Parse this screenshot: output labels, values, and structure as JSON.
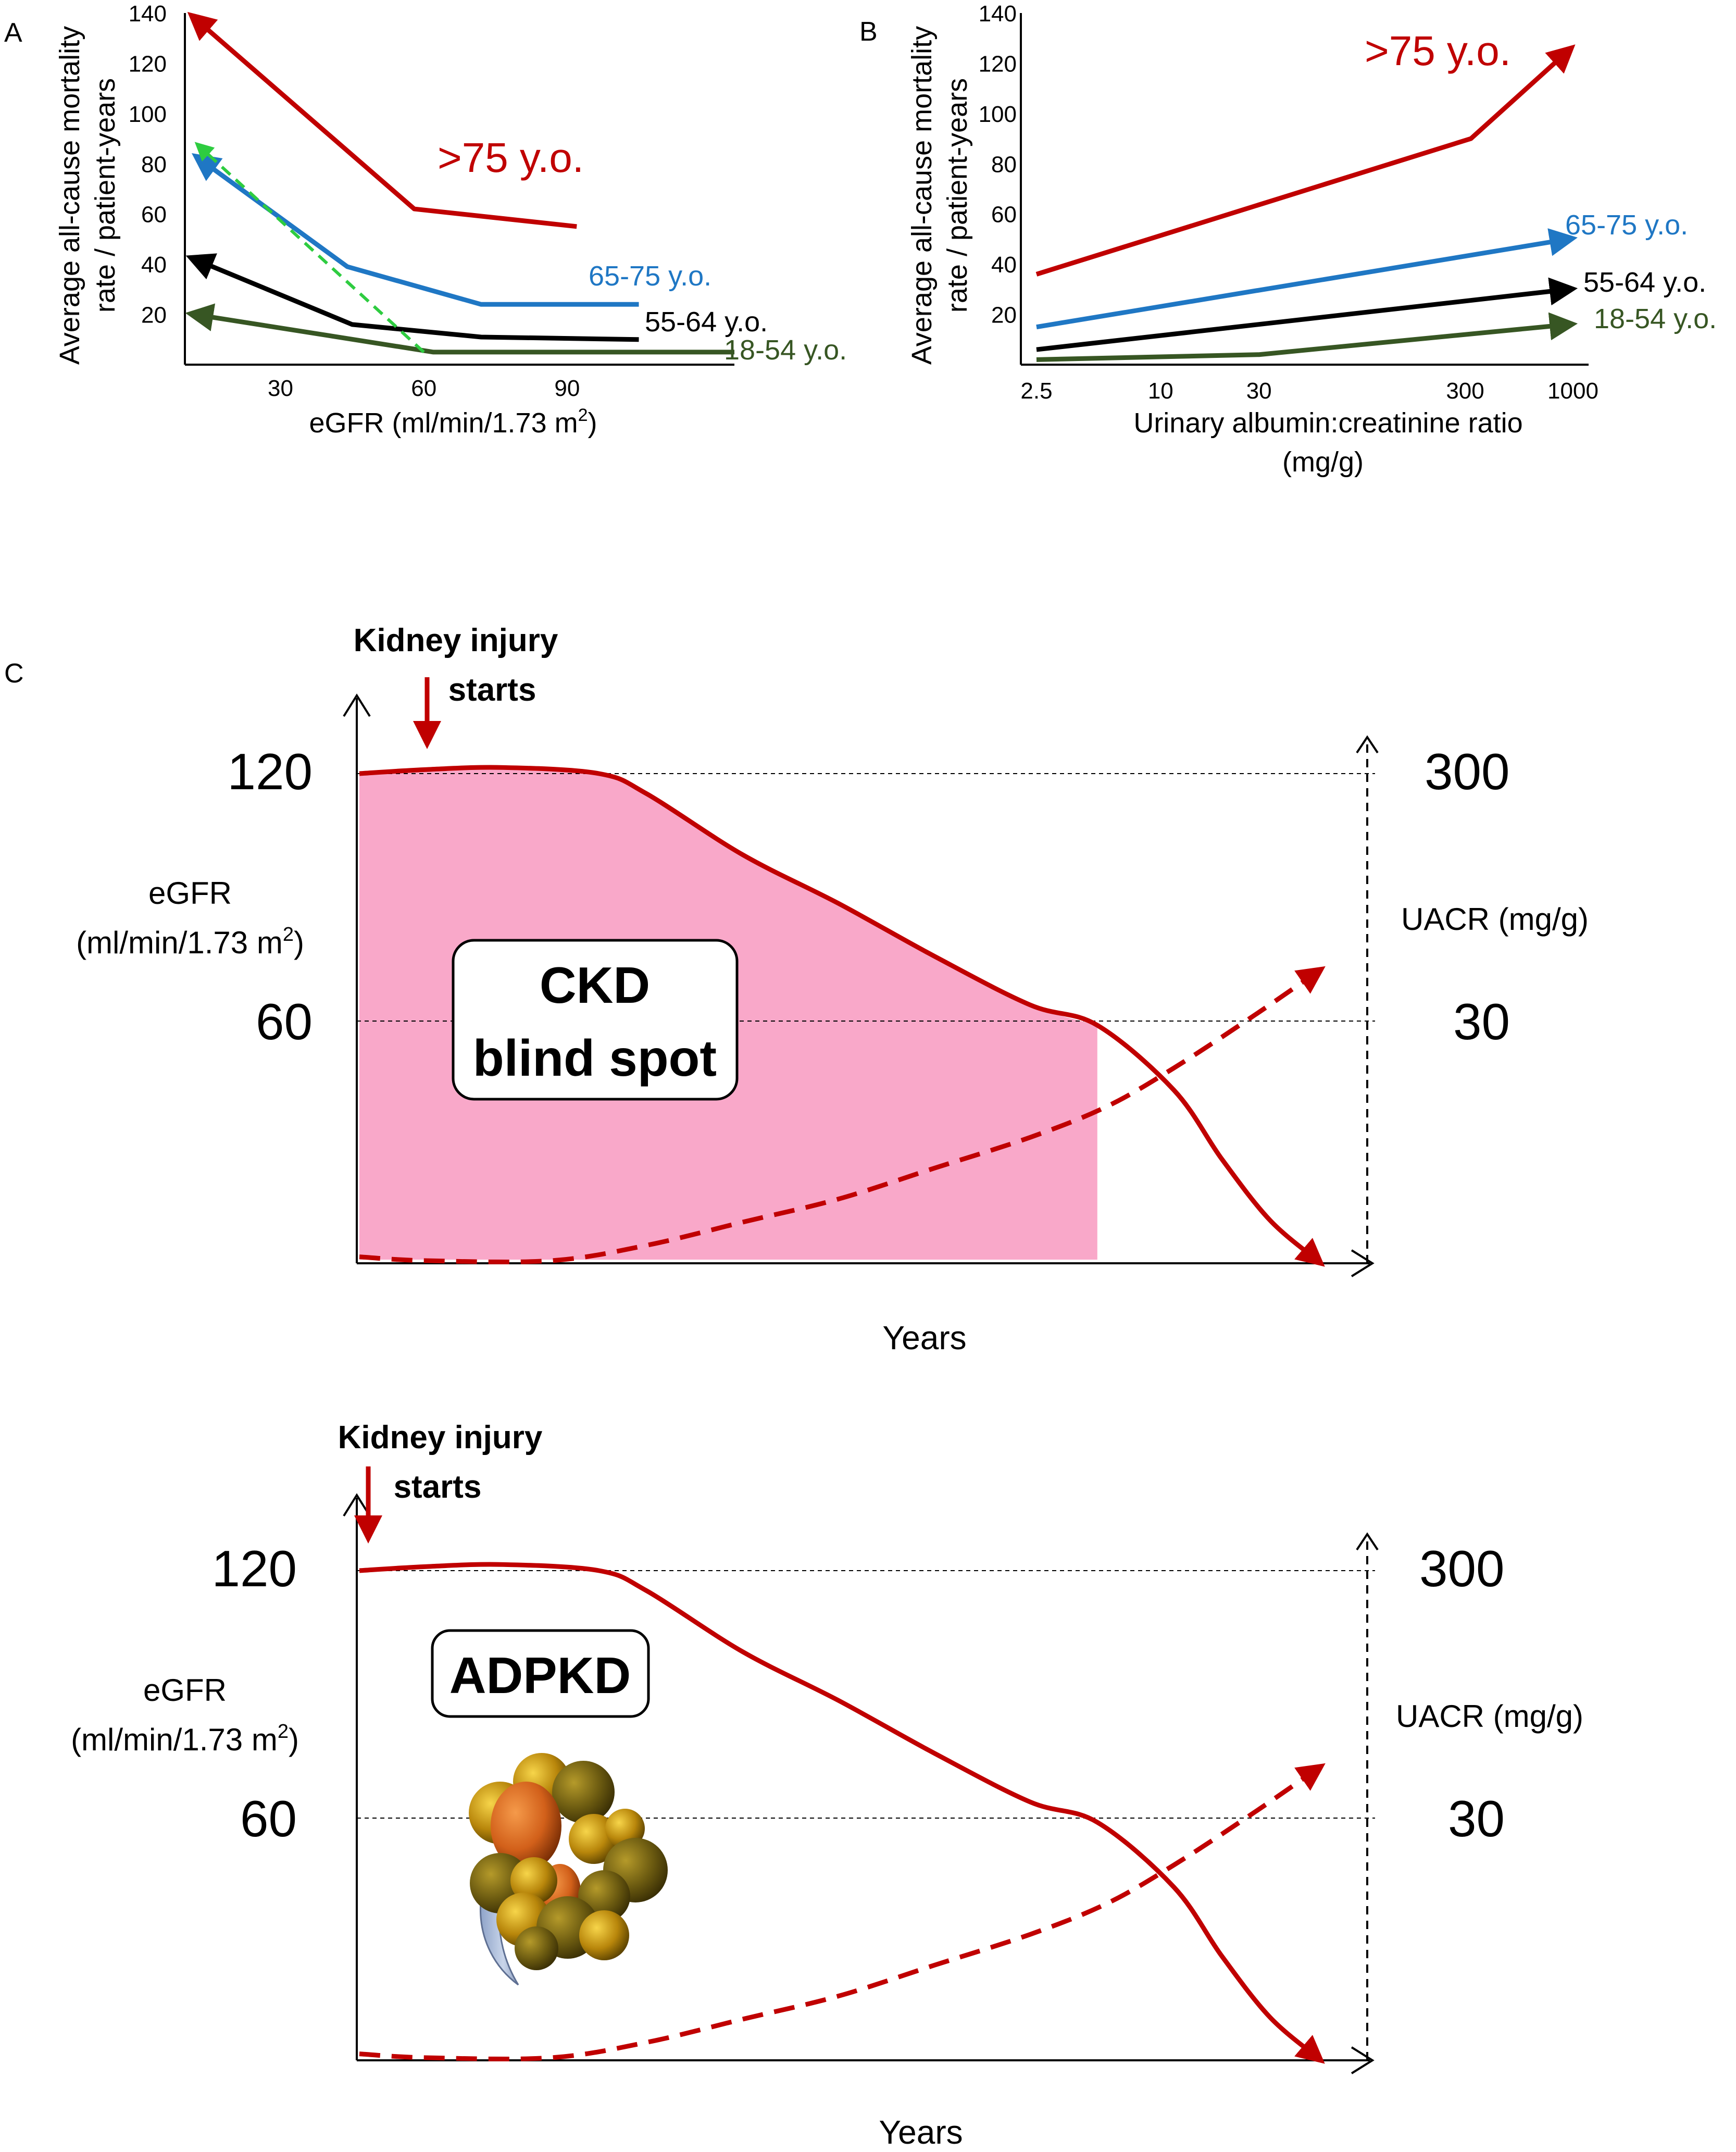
{
  "panel_labels": {
    "a": "A",
    "b": "B",
    "c": "C"
  },
  "colors": {
    "over75": "#c00000",
    "age65_75": "#1f77c4",
    "age55_64": "#000000",
    "age18_54": "#375623",
    "dashed_green": "#2ecc40",
    "blind_fill": "#f9a8c9",
    "curve_red": "#c00000"
  },
  "chart_data": [
    {
      "id": "A",
      "type": "line",
      "title": "",
      "xlabel_main": "eGFR (ml/min/1.73 m",
      "xlabel_sup": "2",
      "xlabel_tail": ")",
      "ylabel_line1": "Average all-cause mortality",
      "ylabel_line2": "rate / patient-years",
      "xlim": [
        10,
        125
      ],
      "ylim": [
        0,
        140
      ],
      "xticks": [
        30,
        60,
        90
      ],
      "yticks": [
        20,
        40,
        60,
        80,
        100,
        120,
        140
      ],
      "series": [
        {
          "name": ">75 y.o.",
          "color_key": "over75",
          "x": [
            12,
            58,
            92
          ],
          "y": [
            138,
            62,
            55
          ]
        },
        {
          "name": "65-75 y.o.",
          "color_key": "age65_75",
          "x": [
            13,
            44,
            72,
            105
          ],
          "y": [
            82,
            39,
            24,
            24
          ]
        },
        {
          "name": "55-64 y.o.",
          "color_key": "age55_64",
          "x": [
            12,
            45,
            72,
            105
          ],
          "y": [
            42,
            16,
            11,
            10
          ]
        },
        {
          "name": "18-54 y.o.",
          "color_key": "age18_54",
          "x": [
            12,
            62,
            125
          ],
          "y": [
            20,
            5,
            5
          ]
        }
      ],
      "dashed_trend": {
        "color_key": "dashed_green",
        "x": [
          60,
          13
        ],
        "y": [
          5,
          87
        ]
      }
    },
    {
      "id": "B",
      "type": "line",
      "title": "",
      "xscale": "log",
      "xlabel_line1": "Urinary albumin:creatinine ratio",
      "xlabel_line2": "(mg/g)",
      "ylabel_line1": "Average all-cause mortality",
      "ylabel_line2": "rate / patient-years",
      "xlim": [
        2.5,
        1000
      ],
      "ylim": [
        0,
        140
      ],
      "xticks": [
        "2.5",
        "10",
        "30",
        "300",
        "1000"
      ],
      "xtick_values": [
        2.5,
        10,
        30,
        300,
        1000
      ],
      "yticks": [
        20,
        40,
        60,
        80,
        100,
        120,
        140
      ],
      "series": [
        {
          "name": ">75 y.o.",
          "color_key": "over75",
          "x": [
            2.5,
            320,
            950
          ],
          "y": [
            36,
            90,
            125
          ]
        },
        {
          "name": "65-75 y.o.",
          "color_key": "age65_75",
          "x": [
            2.5,
            950
          ],
          "y": [
            15,
            50
          ]
        },
        {
          "name": "55-64 y.o.",
          "color_key": "age55_64",
          "x": [
            2.5,
            950
          ],
          "y": [
            6,
            30
          ]
        },
        {
          "name": "18-54 y.o.",
          "color_key": "age18_54",
          "x": [
            2.5,
            30,
            950
          ],
          "y": [
            2,
            4,
            16
          ]
        }
      ]
    },
    {
      "id": "C-top",
      "type": "line",
      "title": "",
      "xlabel": "Years",
      "left_axis_label_line1": "eGFR",
      "left_axis_label_line2": "(ml/min/1.73 m",
      "left_axis_label_sup": "2",
      "left_axis_label_tail": ")",
      "right_axis_label": "UACR (mg/g)",
      "left_ticks": [
        "120",
        "60"
      ],
      "right_ticks": [
        "300",
        "30"
      ],
      "annotation_line1": "Kidney injury",
      "annotation_line2": "starts",
      "box_line1": "CKD",
      "box_line2": "blind spot",
      "xlim": [
        0,
        100
      ],
      "egfr_curve": {
        "x": [
          0,
          7,
          15,
          25,
          30,
          40,
          50,
          60,
          70,
          77,
          85,
          90,
          95,
          100
        ],
        "y": [
          120,
          121,
          121.5,
          120,
          115,
          100,
          88,
          75,
          63,
          58,
          42,
          25,
          10,
          0
        ]
      },
      "uacr_curve": {
        "x": [
          0,
          7,
          20,
          30,
          40,
          50,
          60,
          70,
          78,
          85,
          93,
          100
        ],
        "y": [
          1,
          0,
          0,
          4,
          10,
          16,
          24,
          32,
          40,
          50,
          63,
          75
        ]
      },
      "blind_spot_range": [
        0,
        77
      ]
    },
    {
      "id": "C-bottom",
      "type": "line",
      "title": "",
      "xlabel": "Years",
      "left_axis_label_line1": "eGFR",
      "left_axis_label_line2": "(ml/min/1.73 m",
      "left_axis_label_sup": "2",
      "left_axis_label_tail": ")",
      "right_axis_label": "UACR (mg/g)",
      "left_ticks": [
        "120",
        "60"
      ],
      "right_ticks": [
        "300",
        "30"
      ],
      "annotation_line1": "Kidney injury",
      "annotation_line2": "starts",
      "box_label": "ADPKD",
      "xlim": [
        0,
        100
      ],
      "egfr_curve": {
        "x": [
          0,
          7,
          15,
          25,
          30,
          40,
          50,
          60,
          70,
          77,
          85,
          90,
          95,
          100
        ],
        "y": [
          120,
          121,
          121.5,
          120,
          115,
          100,
          88,
          75,
          63,
          58,
          42,
          25,
          10,
          0
        ]
      },
      "uacr_curve": {
        "x": [
          0,
          7,
          20,
          30,
          40,
          50,
          60,
          70,
          78,
          85,
          93,
          100
        ],
        "y": [
          1,
          0,
          0,
          4,
          10,
          16,
          24,
          32,
          40,
          50,
          63,
          75
        ]
      }
    }
  ]
}
